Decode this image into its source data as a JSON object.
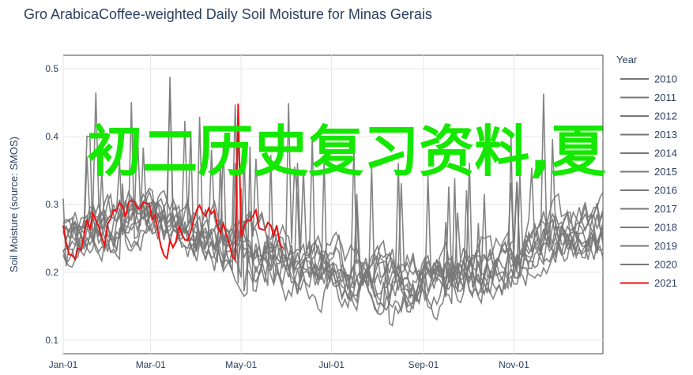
{
  "chart_data": {
    "type": "line",
    "title": "Gro ArabicaCoffee-weighted Daily Soil Moisture for Minas Gerais",
    "xlabel": "",
    "ylabel": "Soil Moisture (source: SMOS)",
    "x_tick_labels": [
      "Jan-01",
      "Mar-01",
      "May-01",
      "Jul-01",
      "Sep-01",
      "Nov-01"
    ],
    "y_ticks": [
      0.1,
      0.2,
      0.3,
      0.4,
      0.5
    ],
    "y_tick_labels": [
      "0.1",
      "0.2",
      "0.3",
      "0.4",
      "0.5"
    ],
    "ylim": [
      0.08,
      0.52
    ],
    "xlim_day_of_year": [
      1,
      365
    ],
    "legend_title": "Year",
    "legend_position": "right",
    "grid": true,
    "series": [
      {
        "name": "2010",
        "color": "#777777",
        "seed": 11
      },
      {
        "name": "2011",
        "color": "#777777",
        "seed": 23
      },
      {
        "name": "2012",
        "color": "#777777",
        "seed": 37
      },
      {
        "name": "2013",
        "color": "#777777",
        "seed": 41
      },
      {
        "name": "2014",
        "color": "#777777",
        "seed": 53
      },
      {
        "name": "2015",
        "color": "#777777",
        "seed": 67
      },
      {
        "name": "2016",
        "color": "#777777",
        "seed": 71
      },
      {
        "name": "2017",
        "color": "#777777",
        "seed": 83
      },
      {
        "name": "2018",
        "color": "#777777",
        "seed": 97
      },
      {
        "name": "2019",
        "color": "#777777",
        "seed": 101
      },
      {
        "name": "2020",
        "color": "#777777",
        "seed": 113
      },
      {
        "name": "2021",
        "color": "#ee1111",
        "seed": 127,
        "last_day": 150
      }
    ],
    "seasonal_profile": {
      "day_of_year": [
        1,
        30,
        60,
        90,
        120,
        150,
        180,
        210,
        240,
        270,
        300,
        330,
        365
      ],
      "mean_value": [
        0.25,
        0.27,
        0.28,
        0.26,
        0.24,
        0.22,
        0.2,
        0.19,
        0.18,
        0.19,
        0.22,
        0.25,
        0.26
      ]
    }
  },
  "overlay_text": "初二历史复习资料,夏"
}
